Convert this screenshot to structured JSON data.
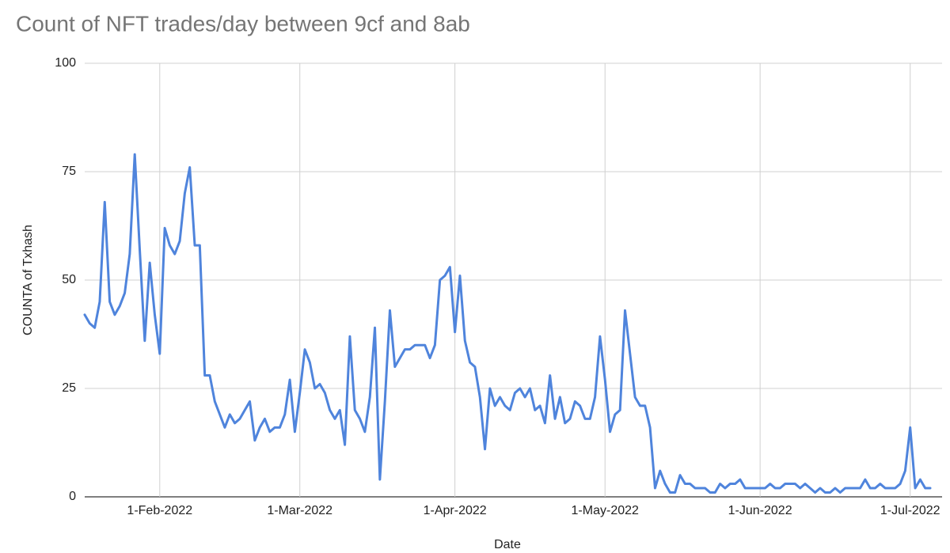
{
  "chart_data": {
    "type": "line",
    "title": "Count of NFT trades/day between 9cf and 8ab",
    "x_label": "Date",
    "y_label": "COUNTA of Txhash",
    "color": "#4f84dc",
    "grid": true,
    "x": [
      "2022-01-17",
      "2022-01-18",
      "2022-01-19",
      "2022-01-20",
      "2022-01-21",
      "2022-01-22",
      "2022-01-23",
      "2022-01-24",
      "2022-01-25",
      "2022-01-26",
      "2022-01-27",
      "2022-01-28",
      "2022-01-29",
      "2022-01-30",
      "2022-01-31",
      "2022-02-01",
      "2022-02-02",
      "2022-02-03",
      "2022-02-04",
      "2022-02-05",
      "2022-02-06",
      "2022-02-07",
      "2022-02-08",
      "2022-02-09",
      "2022-02-10",
      "2022-02-11",
      "2022-02-12",
      "2022-02-13",
      "2022-02-14",
      "2022-02-15",
      "2022-02-16",
      "2022-02-17",
      "2022-02-18",
      "2022-02-19",
      "2022-02-20",
      "2022-02-21",
      "2022-02-22",
      "2022-02-23",
      "2022-02-24",
      "2022-02-25",
      "2022-02-26",
      "2022-02-27",
      "2022-02-28",
      "2022-03-01",
      "2022-03-02",
      "2022-03-03",
      "2022-03-04",
      "2022-03-05",
      "2022-03-06",
      "2022-03-07",
      "2022-03-08",
      "2022-03-09",
      "2022-03-10",
      "2022-03-11",
      "2022-03-12",
      "2022-03-13",
      "2022-03-14",
      "2022-03-15",
      "2022-03-16",
      "2022-03-17",
      "2022-03-18",
      "2022-03-19",
      "2022-03-20",
      "2022-03-21",
      "2022-03-22",
      "2022-03-23",
      "2022-03-24",
      "2022-03-25",
      "2022-03-26",
      "2022-03-27",
      "2022-03-28",
      "2022-03-29",
      "2022-03-30",
      "2022-03-31",
      "2022-04-01",
      "2022-04-02",
      "2022-04-03",
      "2022-04-04",
      "2022-04-05",
      "2022-04-06",
      "2022-04-07",
      "2022-04-08",
      "2022-04-09",
      "2022-04-10",
      "2022-04-11",
      "2022-04-12",
      "2022-04-13",
      "2022-04-14",
      "2022-04-15",
      "2022-04-16",
      "2022-04-17",
      "2022-04-18",
      "2022-04-19",
      "2022-04-20",
      "2022-04-21",
      "2022-04-22",
      "2022-04-23",
      "2022-04-24",
      "2022-04-25",
      "2022-04-26",
      "2022-04-27",
      "2022-04-28",
      "2022-04-29",
      "2022-04-30",
      "2022-05-01",
      "2022-05-02",
      "2022-05-03",
      "2022-05-04",
      "2022-05-05",
      "2022-05-06",
      "2022-05-07",
      "2022-05-08",
      "2022-05-09",
      "2022-05-10",
      "2022-05-11",
      "2022-05-12",
      "2022-05-13",
      "2022-05-14",
      "2022-05-15",
      "2022-05-16",
      "2022-05-17",
      "2022-05-18",
      "2022-05-19",
      "2022-05-20",
      "2022-05-21",
      "2022-05-22",
      "2022-05-23",
      "2022-05-24",
      "2022-05-25",
      "2022-05-26",
      "2022-05-27",
      "2022-05-28",
      "2022-05-29",
      "2022-05-30",
      "2022-05-31",
      "2022-06-01",
      "2022-06-02",
      "2022-06-03",
      "2022-06-04",
      "2022-06-05",
      "2022-06-06",
      "2022-06-07",
      "2022-06-08",
      "2022-06-09",
      "2022-06-10",
      "2022-06-11",
      "2022-06-12",
      "2022-06-13",
      "2022-06-14",
      "2022-06-15",
      "2022-06-16",
      "2022-06-17",
      "2022-06-18",
      "2022-06-19",
      "2022-06-20",
      "2022-06-21",
      "2022-06-22",
      "2022-06-23",
      "2022-06-24",
      "2022-06-25",
      "2022-06-26",
      "2022-06-27",
      "2022-06-28",
      "2022-06-29",
      "2022-06-30",
      "2022-07-01",
      "2022-07-02",
      "2022-07-03",
      "2022-07-04",
      "2022-07-05"
    ],
    "values": [
      42,
      40,
      39,
      45,
      68,
      45,
      42,
      44,
      47,
      56,
      79,
      57,
      36,
      54,
      42,
      33,
      62,
      58,
      56,
      59,
      70,
      76,
      58,
      58,
      28,
      28,
      22,
      19,
      16,
      19,
      17,
      18,
      20,
      22,
      13,
      16,
      18,
      15,
      16,
      16,
      19,
      27,
      15,
      24,
      34,
      31,
      25,
      26,
      24,
      20,
      18,
      20,
      12,
      37,
      20,
      18,
      15,
      23,
      39,
      4,
      22,
      43,
      30,
      32,
      34,
      34,
      35,
      35,
      35,
      32,
      35,
      50,
      51,
      53,
      38,
      51,
      36,
      31,
      30,
      23,
      11,
      25,
      21,
      23,
      21,
      20,
      24,
      25,
      23,
      25,
      20,
      21,
      17,
      28,
      18,
      23,
      17,
      18,
      22,
      21,
      18,
      18,
      23,
      37,
      27,
      15,
      19,
      20,
      43,
      33,
      23,
      21,
      21,
      16,
      2,
      6,
      3,
      1,
      1,
      5,
      3,
      3,
      2,
      2,
      2,
      1,
      1,
      3,
      2,
      3,
      3,
      4,
      2,
      2,
      2,
      2,
      2,
      3,
      2,
      2,
      3,
      3,
      3,
      2,
      3,
      2,
      1,
      2,
      1,
      1,
      2,
      1,
      2,
      2,
      2,
      2,
      4,
      2,
      2,
      3,
      2,
      2,
      2,
      3,
      6,
      16,
      2,
      4,
      2,
      2
    ],
    "xlim": [
      "2022-01-17",
      "2022-07-05"
    ],
    "xticks": [
      {
        "value": "2022-02-01",
        "label": "1-Feb-2022"
      },
      {
        "value": "2022-03-01",
        "label": "1-Mar-2022"
      },
      {
        "value": "2022-04-01",
        "label": "1-Apr-2022"
      },
      {
        "value": "2022-05-01",
        "label": "1-May-2022"
      },
      {
        "value": "2022-06-01",
        "label": "1-Jun-2022"
      },
      {
        "value": "2022-07-01",
        "label": "1-Jul-2022"
      }
    ],
    "ylim": [
      0,
      100
    ],
    "yticks": [
      0,
      25,
      50,
      75,
      100
    ]
  }
}
